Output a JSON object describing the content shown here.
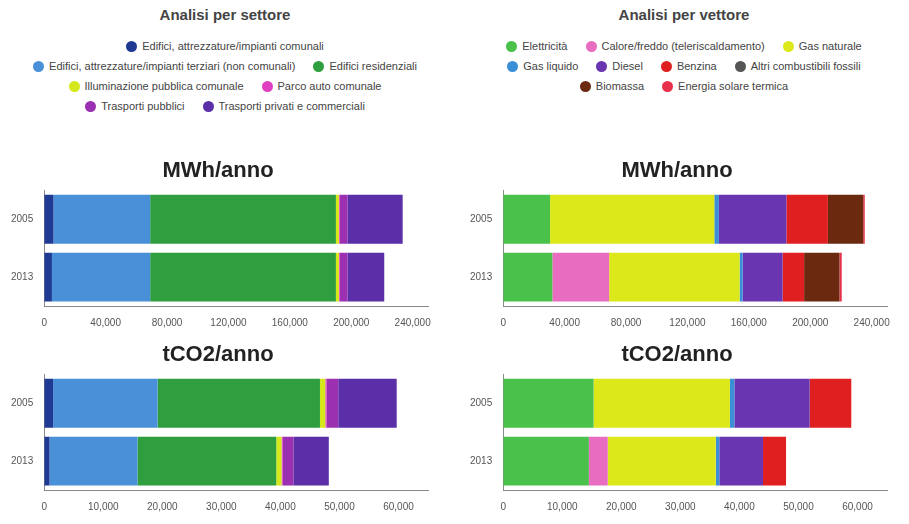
{
  "headings": [
    "Analisi per settore",
    "Analisi per vettore"
  ],
  "chart_data": [
    {
      "type": "bar",
      "title": "MWh/anno",
      "orientation": "horizontal",
      "stacked": true,
      "grid": false,
      "categories": [
        "2005",
        "2013"
      ],
      "xlim": [
        0,
        250000
      ],
      "xticks": [
        0,
        {
          "value": 40000,
          "label": "40,000"
        },
        {
          "value": 80000,
          "label": "80,000"
        },
        {
          "value": 120000,
          "label": "120,000"
        },
        {
          "value": 160000,
          "label": "160,000"
        },
        {
          "value": 200000,
          "label": "200,000"
        },
        {
          "value": 240000,
          "label": "240,000"
        }
      ],
      "series": [
        {
          "name": "Edifici, attrezzature/impianti comunali",
          "color": "#1f3a93",
          "values": [
            6000,
            5000
          ]
        },
        {
          "name": "Edifici, attrezzature/impianti terziari (non comunali)",
          "color": "#4a90d9",
          "values": [
            63000,
            64000
          ]
        },
        {
          "name": "Edifici residenziali",
          "color": "#2e9e3e",
          "values": [
            121000,
            121000
          ]
        },
        {
          "name": "Illuminazione pubblica comunale",
          "color": "#d4e81b",
          "values": [
            2000,
            2000
          ]
        },
        {
          "name": "Parco auto comunale",
          "color": "#e040c0",
          "values": [
            500,
            500
          ]
        },
        {
          "name": "Trasporti pubblici",
          "color": "#9b30b0",
          "values": [
            5000,
            5000
          ]
        },
        {
          "name": "Trasporti privati e commerciali",
          "color": "#5a2fa8",
          "values": [
            36000,
            24000
          ]
        }
      ]
    },
    {
      "type": "bar",
      "title": "tCO2/anno",
      "orientation": "horizontal",
      "stacked": true,
      "grid": false,
      "categories": [
        "2005",
        "2013"
      ],
      "xlim": [
        0,
        65000
      ],
      "xticks": [
        0,
        {
          "value": 10000,
          "label": "10,000"
        },
        {
          "value": 20000,
          "label": "20,000"
        },
        {
          "value": 30000,
          "label": "30,000"
        },
        {
          "value": 40000,
          "label": "40,000"
        },
        {
          "value": 50000,
          "label": "50,000"
        },
        {
          "value": 60000,
          "label": "60,000"
        }
      ],
      "series": [
        {
          "name": "Edifici, attrezzature/impianti comunali",
          "color": "#1f3a93",
          "values": [
            1500,
            900
          ]
        },
        {
          "name": "Edifici, attrezzature/impianti terziari (non comunali)",
          "color": "#4a90d9",
          "values": [
            17700,
            14900
          ]
        },
        {
          "name": "Edifici residenziali",
          "color": "#2e9e3e",
          "values": [
            27500,
            23500
          ]
        },
        {
          "name": "Illuminazione pubblica comunale",
          "color": "#d4e81b",
          "values": [
            900,
            900
          ]
        },
        {
          "name": "Parco auto comunale",
          "color": "#e040c0",
          "values": [
            200,
            200
          ]
        },
        {
          "name": "Trasporti pubblici",
          "color": "#9b30b0",
          "values": [
            2000,
            1800
          ]
        },
        {
          "name": "Trasporti privati e commerciali",
          "color": "#5a2fa8",
          "values": [
            9900,
            6000
          ]
        }
      ]
    },
    {
      "type": "bar",
      "title": "MWh/anno",
      "orientation": "horizontal",
      "stacked": true,
      "grid": false,
      "categories": [
        "2005",
        "2013"
      ],
      "xlim": [
        0,
        250000
      ],
      "xticks": [
        0,
        {
          "value": 40000,
          "label": "40,000"
        },
        {
          "value": 80000,
          "label": "80,000"
        },
        {
          "value": 120000,
          "label": "120,000"
        },
        {
          "value": 160000,
          "label": "160,000"
        },
        {
          "value": 200000,
          "label": "200,000"
        },
        {
          "value": 240000,
          "label": "240,000"
        }
      ],
      "series": [
        {
          "name": "Elettricità",
          "color": "#4ac14a",
          "values": [
            30500,
            32000
          ]
        },
        {
          "name": "Calore/freddo (teleriscaldamento)",
          "color": "#e86cc0",
          "values": [
            0,
            37000
          ]
        },
        {
          "name": "Gas naturale",
          "color": "#dce81a",
          "values": [
            107000,
            85000
          ]
        },
        {
          "name": "Gas liquido",
          "color": "#3a8fd6",
          "values": [
            3000,
            2000
          ]
        },
        {
          "name": "Diesel",
          "color": "#6a35b0",
          "values": [
            44000,
            26000
          ]
        },
        {
          "name": "Benzina",
          "color": "#e02020",
          "values": [
            27000,
            14000
          ]
        },
        {
          "name": "Altri combustibili fossili",
          "color": "#555555",
          "values": [
            0,
            0
          ]
        },
        {
          "name": "Biomassa",
          "color": "#6b2a10",
          "values": [
            23000,
            23000
          ]
        },
        {
          "name": "Energia solare termica",
          "color": "#e8304a",
          "values": [
            1000,
            1500
          ]
        }
      ]
    },
    {
      "type": "bar",
      "title": "tCO2/anno",
      "orientation": "horizontal",
      "stacked": true,
      "grid": false,
      "categories": [
        "2005",
        "2013"
      ],
      "xlim": [
        0,
        65000
      ],
      "xticks": [
        0,
        {
          "value": 10000,
          "label": "10,000"
        },
        {
          "value": 20000,
          "label": "20,000"
        },
        {
          "value": 30000,
          "label": "30,000"
        },
        {
          "value": 40000,
          "label": "40,000"
        },
        {
          "value": 50000,
          "label": "50,000"
        },
        {
          "value": 60000,
          "label": "60,000"
        }
      ],
      "series": [
        {
          "name": "Elettricità",
          "color": "#4ac14a",
          "values": [
            15300,
            14500
          ]
        },
        {
          "name": "Calore/freddo (teleriscaldamento)",
          "color": "#e86cc0",
          "values": [
            0,
            3200
          ]
        },
        {
          "name": "Gas naturale",
          "color": "#dce81a",
          "values": [
            23100,
            18300
          ]
        },
        {
          "name": "Gas liquido",
          "color": "#3a8fd6",
          "values": [
            750,
            600
          ]
        },
        {
          "name": "Diesel",
          "color": "#6a35b0",
          "values": [
            12750,
            7400
          ]
        },
        {
          "name": "Benzina",
          "color": "#e02020",
          "values": [
            7050,
            3900
          ]
        }
      ]
    }
  ]
}
